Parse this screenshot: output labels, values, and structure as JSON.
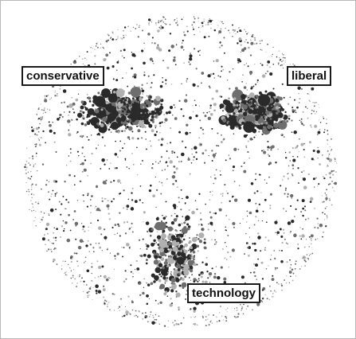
{
  "labels": {
    "conservative": "conservative",
    "liberal": "liberal",
    "technology": "technology"
  },
  "colors": {
    "dark": "#2a2a2a",
    "mid": "#6e6e6e",
    "light": "#b0b0b0",
    "border": "#1a1a1a"
  }
}
